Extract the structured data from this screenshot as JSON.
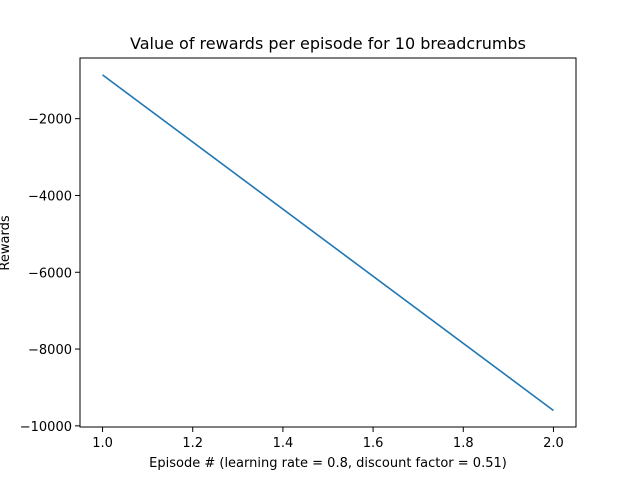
{
  "chart_data": {
    "type": "line",
    "title": "Value of rewards per episode for 10 breadcrumbs",
    "xlabel": "Episode # (learning rate = 0.8, discount factor = 0.51)",
    "ylabel": "Rewards",
    "xlim": [
      0.95,
      2.05
    ],
    "ylim": [
      -10030,
      -420
    ],
    "xticks": [
      1.0,
      1.2,
      1.4,
      1.6,
      1.8,
      2.0
    ],
    "xtick_labels": [
      "1.0",
      "1.2",
      "1.4",
      "1.6",
      "1.8",
      "2.0"
    ],
    "yticks": [
      -10000,
      -8000,
      -6000,
      -4000,
      -2000
    ],
    "ytick_labels": [
      "−10000",
      "−8000",
      "−6000",
      "−4000",
      "−2000"
    ],
    "grid": false,
    "series": [
      {
        "color": "#1f77b4",
        "x": [
          1,
          2
        ],
        "y": [
          -860,
          -9600
        ]
      }
    ]
  }
}
